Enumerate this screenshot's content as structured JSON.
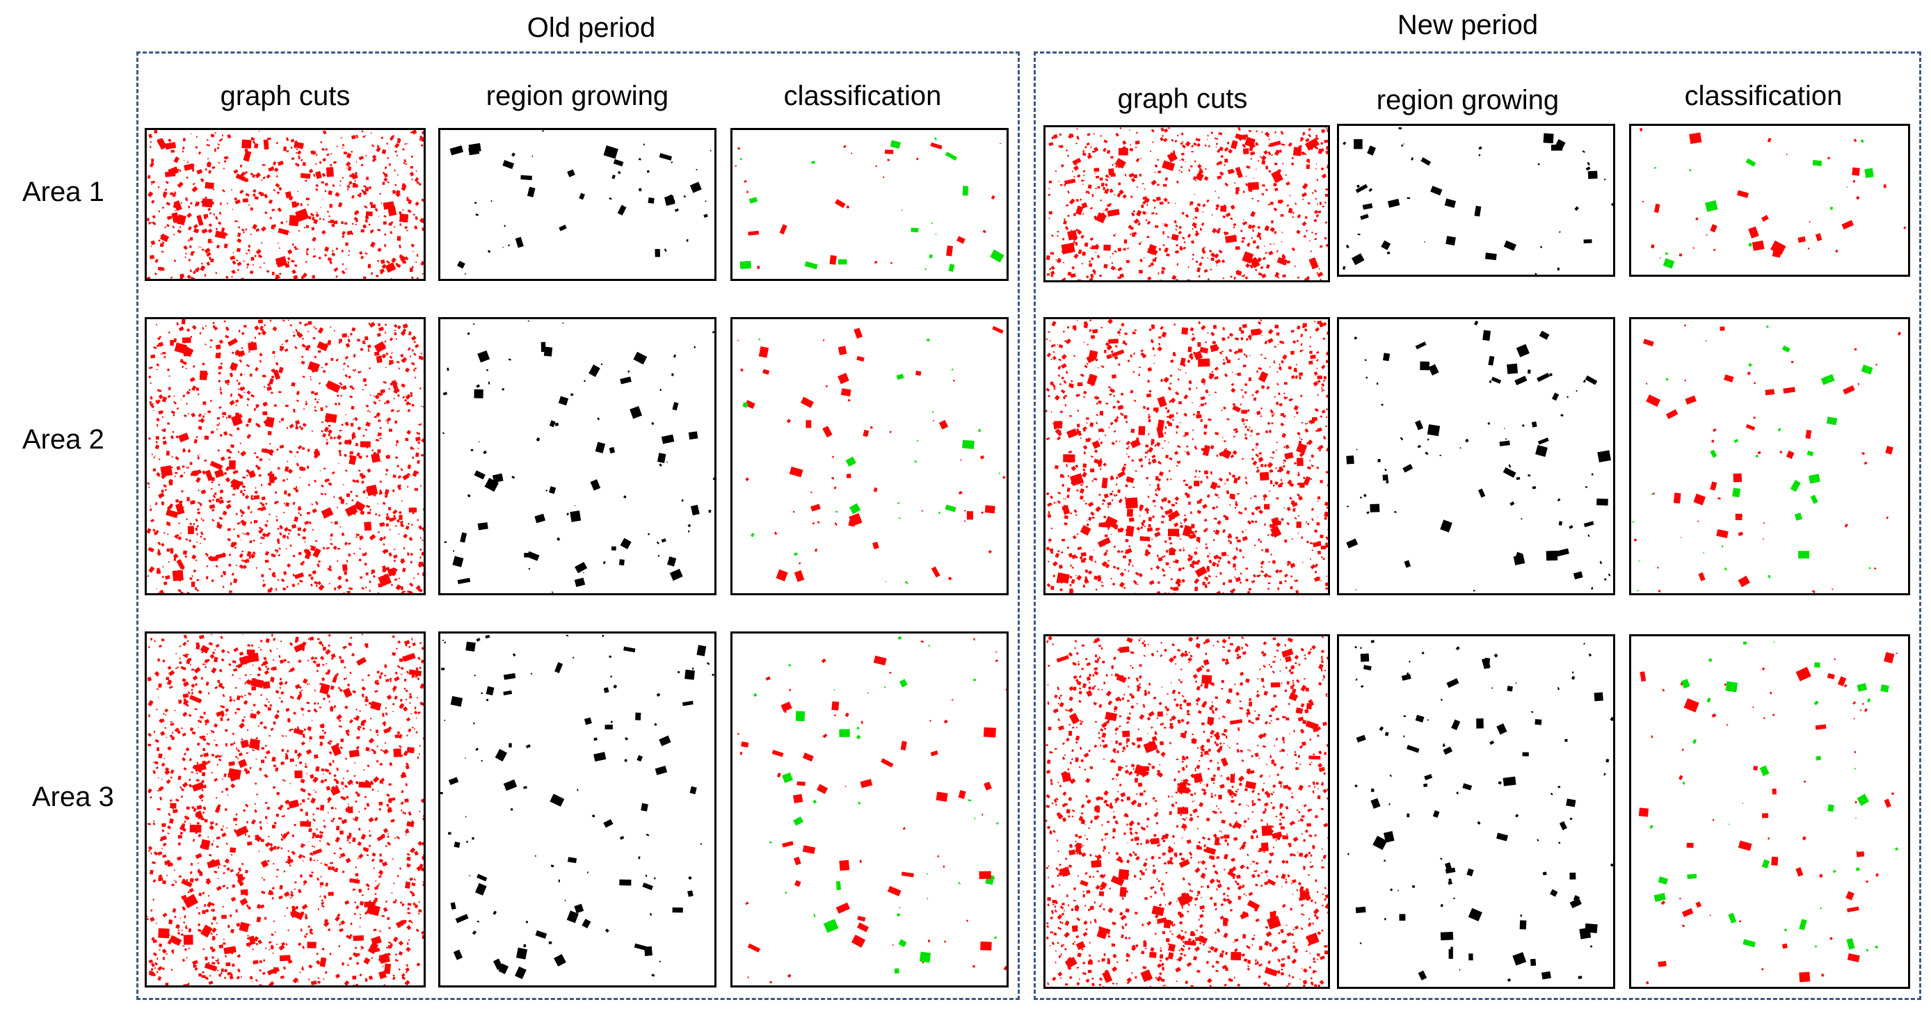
{
  "periods": [
    {
      "title": "Old period",
      "columns": [
        "graph cuts",
        "region growing",
        "classification"
      ]
    },
    {
      "title": "New period",
      "columns": [
        "graph cuts",
        "region growing",
        "classification"
      ]
    }
  ],
  "rows": [
    "Area 1",
    "Area 2",
    "Area 3"
  ],
  "colors": {
    "graph_cuts": "#ff0000",
    "region_growing": "#000000",
    "classification_main": "#ff0000",
    "classification_alt": "#00e000",
    "frame_dash": "#3b5a80"
  }
}
